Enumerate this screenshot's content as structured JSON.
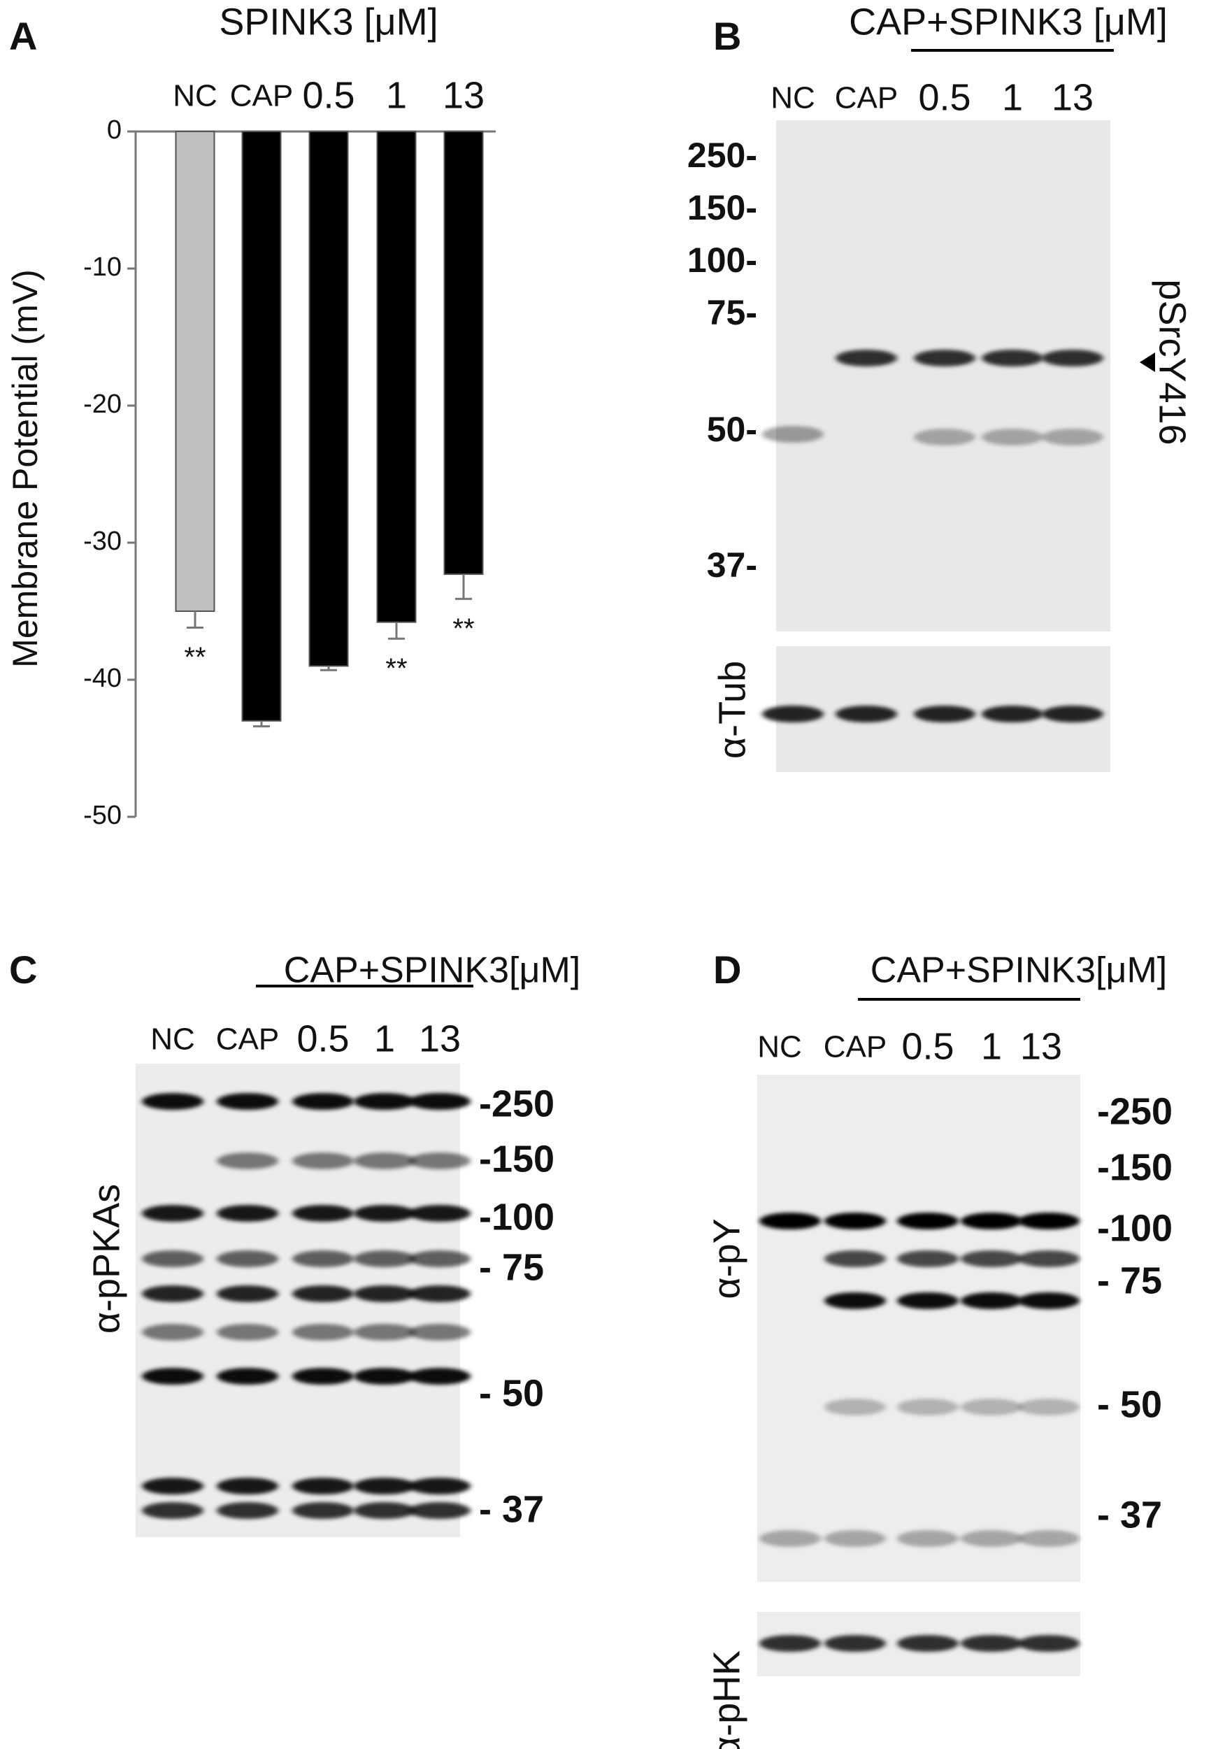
{
  "chart_data": {
    "type": "bar",
    "panel_label": "A",
    "title": "SPINK3 [μM]",
    "y_label": "Membrane Potential  (mV)",
    "categories": [
      "NC",
      "CAP",
      "0.5",
      "1",
      "13"
    ],
    "values": [
      -35,
      -43,
      -39,
      -35.8,
      -32.3
    ],
    "errors": [
      1.2,
      0.4,
      0.3,
      1.2,
      1.8
    ],
    "colors": [
      "#c0c0c0",
      "#000000",
      "#000000",
      "#000000",
      "#000000"
    ],
    "value_annotations": [
      "**",
      null,
      null,
      "**",
      "**"
    ],
    "ylim": [
      -50,
      0
    ],
    "yticks": [
      0,
      -10,
      -20,
      -30,
      -40,
      -50
    ]
  },
  "panels": [
    {
      "label": "B",
      "header": "CAP+SPINK3 [μM]",
      "lanes": [
        "NC",
        "CAP",
        "0.5",
        "1",
        "13"
      ],
      "markers": [
        "250-",
        "150-",
        "100-",
        "75-",
        "50-",
        "37-"
      ],
      "blots": [
        "pSrcY416",
        "α-Tub"
      ]
    },
    {
      "label": "C",
      "header": "CAP+SPINK3[μM]",
      "lanes": [
        "NC",
        "CAP",
        "0.5",
        "1",
        "13"
      ],
      "markers": [
        "-250",
        "-150",
        "-100",
        "-  75",
        "-  50",
        "-  37"
      ],
      "blots": [
        "α-pPKAs"
      ]
    },
    {
      "label": "D",
      "header": "CAP+SPINK3[μM]",
      "lanes": [
        "NC",
        "CAP",
        "0.5",
        "1",
        "13"
      ],
      "markers": [
        "-250",
        "-150",
        "-100",
        "-  75",
        "-  50",
        "-  37"
      ],
      "blots": [
        "α-pY",
        "α-pHK"
      ]
    }
  ]
}
